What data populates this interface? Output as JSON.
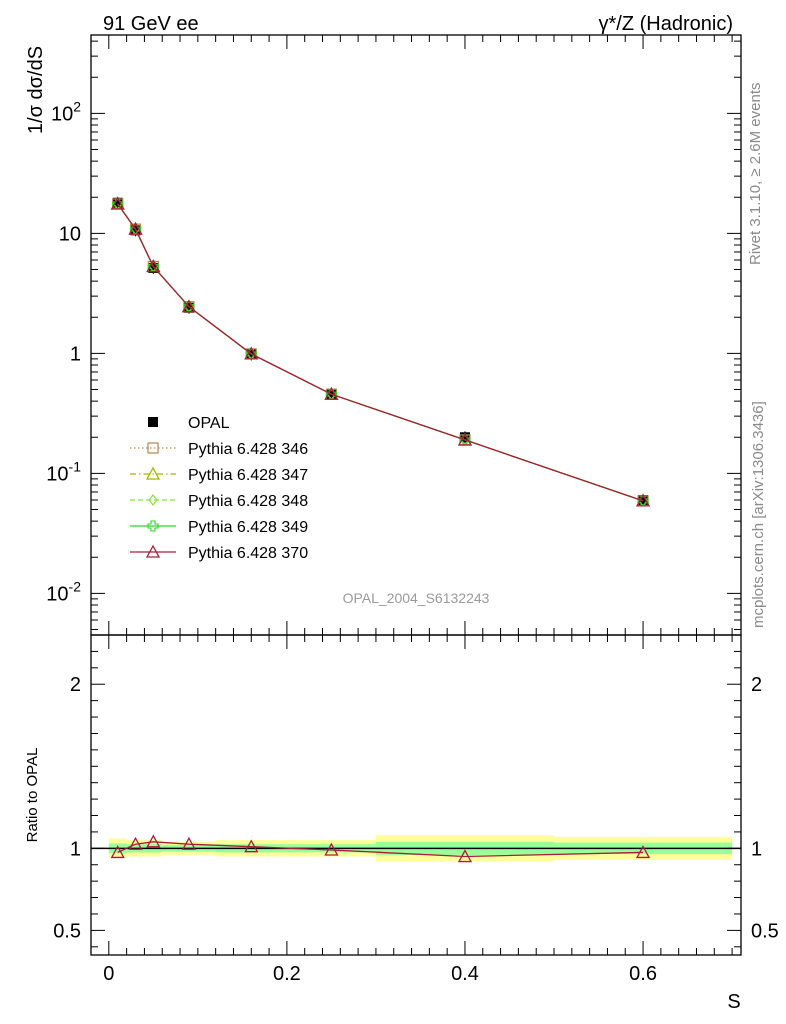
{
  "header": {
    "left": "91 GeV ee",
    "right": "γ*/Z (Hadronic)"
  },
  "side_text": {
    "rivet": "Rivet 3.1.10, ≥ 2.6M events",
    "mcplots": "mcplots.cern.ch [arXiv:1306.3436]"
  },
  "watermark": "OPAL_2004_S6132243",
  "chart_data": [
    {
      "type": "line",
      "panel": "main",
      "ylabel": "1/σ dσ/dS",
      "yscale": "log",
      "ylim": [
        0.0045,
        450
      ],
      "xlim": [
        -0.02,
        0.71
      ],
      "y_ticks": [
        "10^-2",
        "10^-1",
        "1",
        "10",
        "10^2"
      ],
      "legend_position": "middle-left",
      "x": [
        0.01,
        0.03,
        0.05,
        0.09,
        0.16,
        0.25,
        0.4,
        0.6
      ],
      "series": [
        {
          "name": "OPAL",
          "kind": "data",
          "marker": "square",
          "color": "#000000",
          "values": [
            18.0,
            10.6,
            5.15,
            2.4,
            0.98,
            0.46,
            0.2,
            0.06
          ]
        },
        {
          "name": "Pythia 6.428 346",
          "marker": "open-square",
          "line": "dotted",
          "color": "#b8864b",
          "values": [
            17.6,
            10.85,
            5.3,
            2.45,
            0.99,
            0.457,
            0.19,
            0.059
          ]
        },
        {
          "name": "Pythia 6.428 347",
          "marker": "open-triangle",
          "line": "dashdot",
          "color": "#a0b800",
          "values": [
            17.6,
            10.85,
            5.3,
            2.45,
            0.99,
            0.457,
            0.19,
            0.059
          ]
        },
        {
          "name": "Pythia 6.428 348",
          "marker": "open-diamond",
          "line": "dashed",
          "color": "#88e83a",
          "values": [
            17.6,
            10.85,
            5.3,
            2.45,
            0.99,
            0.457,
            0.19,
            0.059
          ]
        },
        {
          "name": "Pythia 6.428 349",
          "marker": "open-cross",
          "line": "solid",
          "color": "#22dd22",
          "values": [
            17.6,
            10.85,
            5.3,
            2.45,
            0.99,
            0.457,
            0.19,
            0.059
          ]
        },
        {
          "name": "Pythia 6.428 370",
          "marker": "open-triangle",
          "line": "solid",
          "color": "#aa1c3c",
          "values": [
            17.6,
            10.85,
            5.3,
            2.45,
            0.99,
            0.457,
            0.19,
            0.059
          ]
        }
      ]
    },
    {
      "type": "line",
      "panel": "ratio",
      "xlabel": "S",
      "ylabel": "Ratio to OPAL",
      "ylim": [
        0.35,
        2.3
      ],
      "xlim": [
        -0.02,
        0.71
      ],
      "x_ticks": [
        "0",
        "0.2",
        "0.4",
        "0.6"
      ],
      "y_ticks": [
        "0.5",
        "1",
        "2"
      ],
      "bins": [
        [
          0.0,
          0.02
        ],
        [
          0.02,
          0.04
        ],
        [
          0.04,
          0.06
        ],
        [
          0.06,
          0.12
        ],
        [
          0.12,
          0.2
        ],
        [
          0.2,
          0.3
        ],
        [
          0.3,
          0.5
        ],
        [
          0.5,
          0.7
        ]
      ],
      "band_outer": [
        [
          0.94,
          1.06
        ],
        [
          0.95,
          1.05
        ],
        [
          0.95,
          1.05
        ],
        [
          0.96,
          1.04
        ],
        [
          0.95,
          1.05
        ],
        [
          0.95,
          1.05
        ],
        [
          0.92,
          1.08
        ],
        [
          0.93,
          1.07
        ]
      ],
      "band_inner": [
        [
          0.97,
          1.03
        ],
        [
          0.975,
          1.025
        ],
        [
          0.975,
          1.025
        ],
        [
          0.98,
          1.02
        ],
        [
          0.975,
          1.025
        ],
        [
          0.975,
          1.025
        ],
        [
          0.96,
          1.04
        ],
        [
          0.965,
          1.035
        ]
      ],
      "x": [
        0.01,
        0.03,
        0.05,
        0.09,
        0.16,
        0.25,
        0.4,
        0.6
      ],
      "series": [
        {
          "name": "Pythia 6.428 370",
          "color": "#aa1c3c",
          "values": [
            0.975,
            1.025,
            1.04,
            1.025,
            1.01,
            0.99,
            0.95,
            0.975
          ]
        }
      ]
    }
  ]
}
